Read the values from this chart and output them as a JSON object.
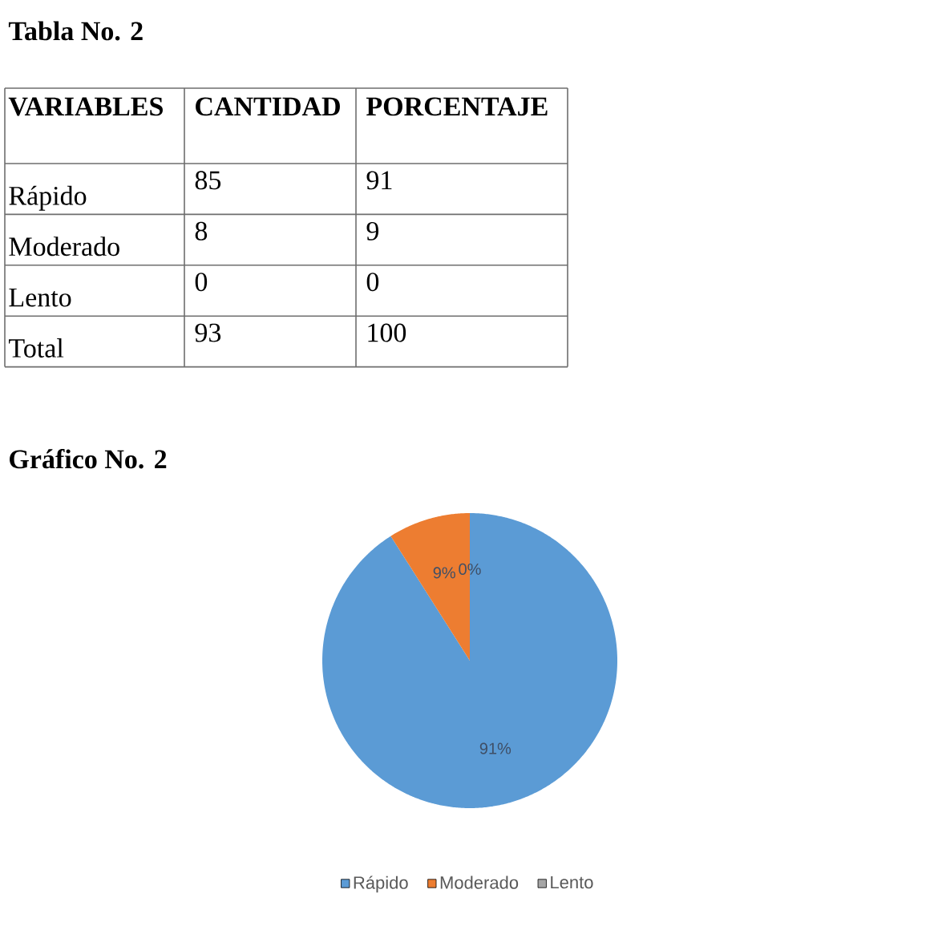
{
  "chart_data": [
    {
      "type": "other",
      "title": "Tabla No. 2",
      "annotations": [
        "VARIABLES",
        "CANTIDAD",
        "PORCENTAJE",
        "Rápido",
        "85",
        "91",
        "Moderado",
        "8",
        "9",
        "Lento",
        "0",
        "0",
        "Total",
        "93",
        "100"
      ]
    },
    {
      "type": "pie",
      "title": "Gráfico No. 2",
      "categories": [
        "Rápido",
        "Moderado",
        "Lento"
      ],
      "values": [
        91,
        9,
        0
      ],
      "colors": [
        "#5b9bd5",
        "#ed7d31",
        "#a5a5a5"
      ],
      "value_labels": [
        "91%",
        "9%",
        "0%"
      ],
      "legend": "bottom"
    }
  ]
}
